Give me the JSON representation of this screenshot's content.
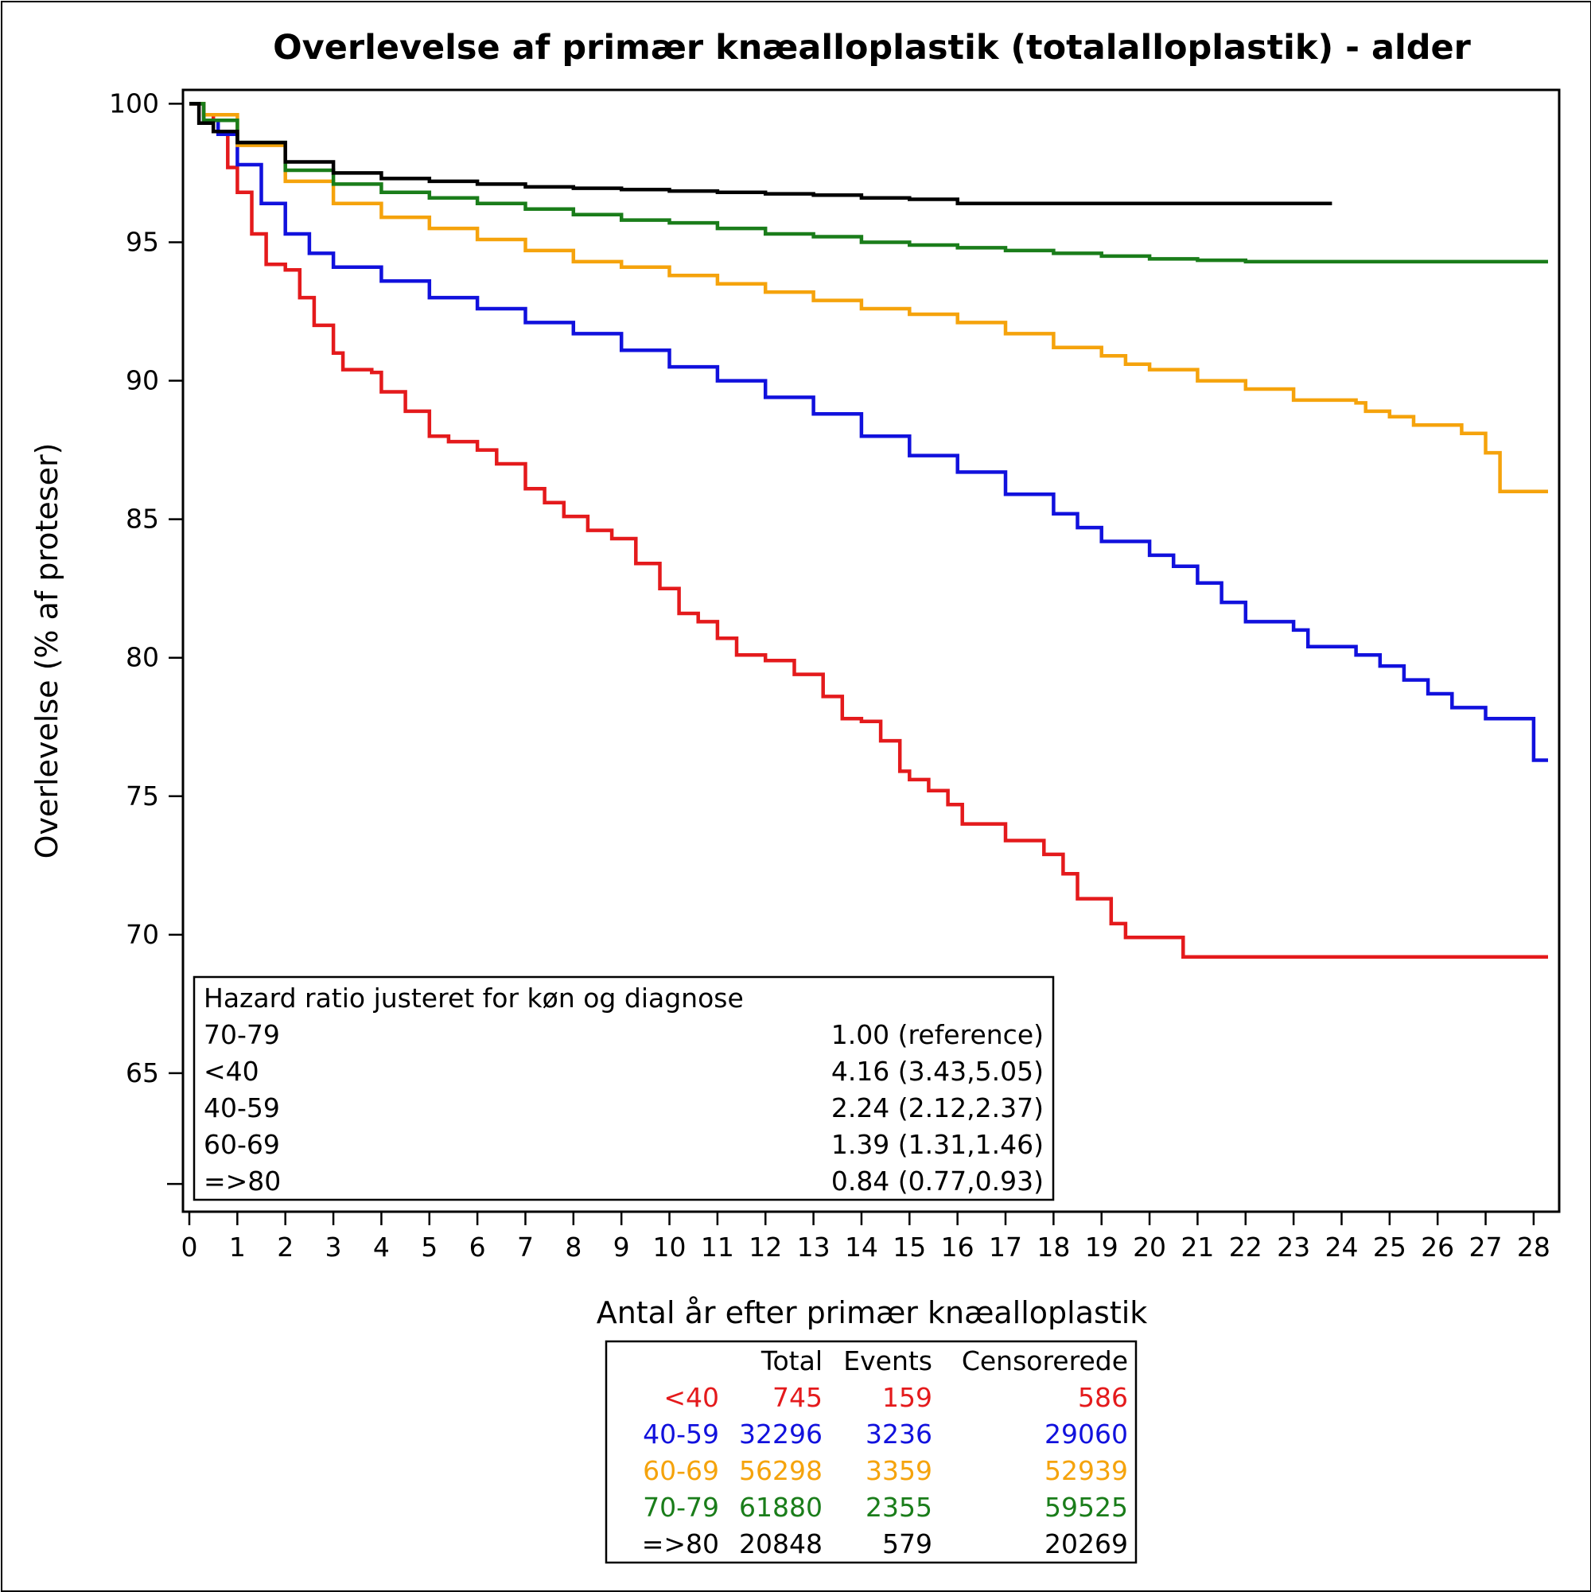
{
  "chart_data": {
    "type": "line",
    "title": "Overlevelse af primær knæalloplastik (totalalloplastik) - alder",
    "xlabel": "Antal år efter primær knæalloplastik",
    "ylabel": "Overlevelse (% af proteser)",
    "xlim": [
      0,
      28.3
    ],
    "ylim": [
      60,
      100.5
    ],
    "x_ticks": [
      "0",
      "1",
      "2",
      "3",
      "4",
      "5",
      "6",
      "7",
      "8",
      "9",
      "10",
      "11",
      "12",
      "13",
      "14",
      "15",
      "16",
      "17",
      "18",
      "19",
      "20",
      "21",
      "22",
      "23",
      "24",
      "25",
      "26",
      "27",
      "28"
    ],
    "y_ticks": [
      "65",
      "70",
      "75",
      "80",
      "85",
      "90",
      "95",
      "100"
    ],
    "grid": false,
    "series": [
      {
        "name": "<40",
        "color": "#e41a1c",
        "points": [
          [
            0,
            100
          ],
          [
            0.3,
            99.6
          ],
          [
            0.5,
            99
          ],
          [
            0.8,
            97.7
          ],
          [
            1.0,
            96.8
          ],
          [
            1.3,
            95.3
          ],
          [
            1.6,
            94.2
          ],
          [
            2.0,
            94.0
          ],
          [
            2.3,
            93.0
          ],
          [
            2.6,
            92.0
          ],
          [
            3.0,
            91.0
          ],
          [
            3.2,
            90.4
          ],
          [
            3.8,
            90.3
          ],
          [
            4.0,
            89.6
          ],
          [
            4.5,
            88.9
          ],
          [
            5.0,
            88.0
          ],
          [
            5.4,
            87.8
          ],
          [
            6.0,
            87.5
          ],
          [
            6.4,
            87.0
          ],
          [
            7.0,
            86.1
          ],
          [
            7.4,
            85.6
          ],
          [
            7.8,
            85.1
          ],
          [
            8.3,
            84.6
          ],
          [
            8.8,
            84.3
          ],
          [
            9.3,
            83.4
          ],
          [
            9.8,
            82.5
          ],
          [
            10.2,
            81.6
          ],
          [
            10.6,
            81.3
          ],
          [
            11.0,
            80.7
          ],
          [
            11.4,
            80.1
          ],
          [
            12.0,
            79.9
          ],
          [
            12.6,
            79.4
          ],
          [
            13.2,
            78.6
          ],
          [
            13.6,
            77.8
          ],
          [
            14.0,
            77.7
          ],
          [
            14.4,
            77.0
          ],
          [
            14.8,
            75.9
          ],
          [
            15.0,
            75.6
          ],
          [
            15.4,
            75.2
          ],
          [
            15.8,
            74.7
          ],
          [
            16.1,
            74.0
          ],
          [
            17.0,
            73.4
          ],
          [
            17.8,
            72.9
          ],
          [
            18.2,
            72.2
          ],
          [
            18.5,
            71.3
          ],
          [
            19.2,
            70.4
          ],
          [
            19.5,
            69.9
          ],
          [
            20.7,
            69.2
          ],
          [
            28.3,
            69.2
          ]
        ]
      },
      {
        "name": "40-59",
        "color": "#1111dd",
        "points": [
          [
            0,
            100
          ],
          [
            0.3,
            99.4
          ],
          [
            0.6,
            98.9
          ],
          [
            1.0,
            97.8
          ],
          [
            1.5,
            96.4
          ],
          [
            2.0,
            95.3
          ],
          [
            2.5,
            94.6
          ],
          [
            3.0,
            94.1
          ],
          [
            4.0,
            93.6
          ],
          [
            5.0,
            93.0
          ],
          [
            6.0,
            92.6
          ],
          [
            7.0,
            92.1
          ],
          [
            8.0,
            91.7
          ],
          [
            9.0,
            91.1
          ],
          [
            10.0,
            90.5
          ],
          [
            11.0,
            90.0
          ],
          [
            12.0,
            89.4
          ],
          [
            13.0,
            88.8
          ],
          [
            14.0,
            88.0
          ],
          [
            15.0,
            87.3
          ],
          [
            16.0,
            86.7
          ],
          [
            17.0,
            85.9
          ],
          [
            18.0,
            85.2
          ],
          [
            18.5,
            84.7
          ],
          [
            19.0,
            84.2
          ],
          [
            20.0,
            83.7
          ],
          [
            20.5,
            83.3
          ],
          [
            21.0,
            82.7
          ],
          [
            21.5,
            82.0
          ],
          [
            22.0,
            81.3
          ],
          [
            23.0,
            81.0
          ],
          [
            23.3,
            80.4
          ],
          [
            24.3,
            80.1
          ],
          [
            24.8,
            79.7
          ],
          [
            25.3,
            79.2
          ],
          [
            25.8,
            78.7
          ],
          [
            26.3,
            78.2
          ],
          [
            27.0,
            77.8
          ],
          [
            28.0,
            77.7
          ],
          [
            28.0,
            76.3
          ],
          [
            28.3,
            76.3
          ]
        ]
      },
      {
        "name": "60-69",
        "color": "#f5a30c",
        "points": [
          [
            0,
            100
          ],
          [
            0.3,
            99.6
          ],
          [
            1.0,
            98.5
          ],
          [
            2.0,
            97.2
          ],
          [
            3.0,
            96.4
          ],
          [
            4.0,
            95.9
          ],
          [
            5.0,
            95.5
          ],
          [
            6.0,
            95.1
          ],
          [
            7.0,
            94.7
          ],
          [
            8.0,
            94.3
          ],
          [
            9.0,
            94.1
          ],
          [
            10.0,
            93.8
          ],
          [
            11.0,
            93.5
          ],
          [
            12.0,
            93.2
          ],
          [
            13.0,
            92.9
          ],
          [
            14.0,
            92.6
          ],
          [
            15.0,
            92.4
          ],
          [
            16.0,
            92.1
          ],
          [
            17.0,
            91.7
          ],
          [
            18.0,
            91.2
          ],
          [
            19.0,
            90.9
          ],
          [
            19.5,
            90.6
          ],
          [
            20.0,
            90.4
          ],
          [
            21.0,
            90.0
          ],
          [
            22.0,
            89.7
          ],
          [
            23.0,
            89.3
          ],
          [
            24.3,
            89.2
          ],
          [
            24.5,
            88.9
          ],
          [
            25.0,
            88.7
          ],
          [
            25.5,
            88.4
          ],
          [
            26.5,
            88.1
          ],
          [
            27.0,
            87.4
          ],
          [
            27.3,
            87.3
          ],
          [
            27.3,
            86.0
          ],
          [
            28.3,
            86.0
          ]
        ]
      },
      {
        "name": "70-79",
        "color": "#1a7d1a",
        "points": [
          [
            0,
            100
          ],
          [
            0.3,
            99.4
          ],
          [
            1.0,
            98.6
          ],
          [
            2.0,
            97.6
          ],
          [
            3.0,
            97.1
          ],
          [
            4.0,
            96.8
          ],
          [
            5.0,
            96.6
          ],
          [
            6.0,
            96.4
          ],
          [
            7.0,
            96.2
          ],
          [
            8.0,
            96.0
          ],
          [
            9.0,
            95.8
          ],
          [
            10.0,
            95.7
          ],
          [
            11.0,
            95.5
          ],
          [
            12.0,
            95.3
          ],
          [
            13.0,
            95.2
          ],
          [
            14.0,
            95.0
          ],
          [
            15.0,
            94.9
          ],
          [
            16.0,
            94.8
          ],
          [
            17.0,
            94.7
          ],
          [
            18.0,
            94.6
          ],
          [
            19.0,
            94.5
          ],
          [
            20.0,
            94.4
          ],
          [
            21.0,
            94.35
          ],
          [
            22.0,
            94.3
          ],
          [
            28.3,
            94.3
          ]
        ]
      },
      {
        "name": "=>80",
        "color": "#000000",
        "points": [
          [
            0,
            100
          ],
          [
            0.2,
            99.3
          ],
          [
            0.5,
            99.0
          ],
          [
            1.0,
            98.6
          ],
          [
            2.0,
            97.9
          ],
          [
            3.0,
            97.5
          ],
          [
            4.0,
            97.3
          ],
          [
            5.0,
            97.2
          ],
          [
            6.0,
            97.1
          ],
          [
            7.0,
            97.0
          ],
          [
            8.0,
            96.95
          ],
          [
            9.0,
            96.9
          ],
          [
            10.0,
            96.85
          ],
          [
            11.0,
            96.8
          ],
          [
            12.0,
            96.75
          ],
          [
            13.0,
            96.7
          ],
          [
            14.0,
            96.6
          ],
          [
            15.0,
            96.55
          ],
          [
            16.0,
            96.4
          ],
          [
            17.0,
            96.4
          ],
          [
            20.0,
            96.4
          ],
          [
            23.8,
            96.4
          ]
        ]
      }
    ],
    "hazard_box": {
      "title": "Hazard ratio justeret for køn og diagnose",
      "rows": [
        {
          "label": "70-79",
          "value": "1.00 (reference)"
        },
        {
          "label": "<40",
          "value": "4.16 (3.43,5.05)"
        },
        {
          "label": "40-59",
          "value": "2.24 (2.12,2.37)"
        },
        {
          "label": "60-69",
          "value": "1.39 (1.31,1.46)"
        },
        {
          "label": "=>80",
          "value": "0.84 (0.77,0.93)"
        }
      ]
    },
    "summary_table": {
      "headers": [
        "",
        "Total",
        "Events",
        "Censorerede"
      ],
      "rows": [
        {
          "label": "<40",
          "total": "745",
          "events": "159",
          "censored": "586",
          "color": "#e41a1c"
        },
        {
          "label": "40-59",
          "total": "32296",
          "events": "3236",
          "censored": "29060",
          "color": "#1111dd"
        },
        {
          "label": "60-69",
          "total": "56298",
          "events": "3359",
          "censored": "52939",
          "color": "#f5a30c"
        },
        {
          "label": "70-79",
          "total": "61880",
          "events": "2355",
          "censored": "59525",
          "color": "#1a7d1a"
        },
        {
          "label": "=>80",
          "total": "20848",
          "events": "579",
          "censored": "20269",
          "color": "#000000"
        }
      ]
    }
  }
}
